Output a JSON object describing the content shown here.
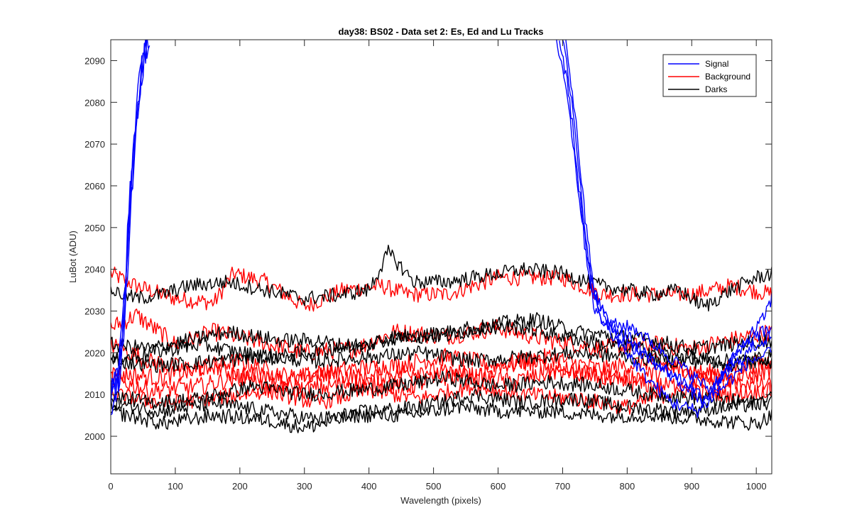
{
  "chart_data": {
    "type": "line",
    "title": "day38: BS02 - Data set 2: Es, Ed and Lu Tracks",
    "xlabel": "Wavelength (pixels)",
    "ylabel": "LuBot (ADU)",
    "xlim": [
      0,
      1024
    ],
    "ylim": [
      1991,
      2095
    ],
    "xticks": [
      0,
      100,
      200,
      300,
      400,
      500,
      600,
      700,
      800,
      900,
      1000
    ],
    "yticks": [
      2000,
      2010,
      2020,
      2030,
      2040,
      2050,
      2060,
      2070,
      2080,
      2090
    ],
    "grid": false,
    "legend": {
      "location": "top-right",
      "entries": [
        "Signal",
        "Background",
        "Darks"
      ]
    },
    "colors": {
      "Signal": "#0000ff",
      "Background": "#ff0000",
      "Darks": "#000000"
    },
    "series": [
      {
        "name": "Background",
        "noise": 2.0,
        "points": [
          [
            0,
            2039
          ],
          [
            40,
            2036
          ],
          [
            100,
            2033
          ],
          [
            160,
            2032
          ],
          [
            190,
            2039
          ],
          [
            240,
            2037
          ],
          [
            300,
            2031
          ],
          [
            360,
            2035
          ],
          [
            420,
            2036
          ],
          [
            460,
            2034
          ],
          [
            520,
            2034
          ],
          [
            600,
            2038
          ],
          [
            700,
            2038
          ],
          [
            760,
            2034
          ],
          [
            840,
            2034
          ],
          [
            900,
            2034
          ],
          [
            960,
            2036
          ],
          [
            1024,
            2034
          ]
        ]
      },
      {
        "name": "Background",
        "noise": 2.2,
        "points": [
          [
            0,
            2026
          ],
          [
            40,
            2029
          ],
          [
            100,
            2022
          ],
          [
            160,
            2025
          ],
          [
            220,
            2023
          ],
          [
            300,
            2020
          ],
          [
            380,
            2021
          ],
          [
            440,
            2025
          ],
          [
            520,
            2024
          ],
          [
            600,
            2026
          ],
          [
            680,
            2023
          ],
          [
            760,
            2021
          ],
          [
            840,
            2022
          ],
          [
            900,
            2021
          ],
          [
            960,
            2023
          ],
          [
            1024,
            2025
          ]
        ]
      },
      {
        "name": "Background",
        "noise": 2.2,
        "points": [
          [
            0,
            2022
          ],
          [
            60,
            2018
          ],
          [
            120,
            2016
          ],
          [
            200,
            2018
          ],
          [
            280,
            2014
          ],
          [
            360,
            2016
          ],
          [
            440,
            2017
          ],
          [
            520,
            2019
          ],
          [
            600,
            2017
          ],
          [
            680,
            2019
          ],
          [
            760,
            2016
          ],
          [
            840,
            2018
          ],
          [
            920,
            2015
          ],
          [
            1024,
            2018
          ]
        ]
      },
      {
        "name": "Background",
        "noise": 2.2,
        "points": [
          [
            0,
            2015
          ],
          [
            80,
            2014
          ],
          [
            160,
            2017
          ],
          [
            240,
            2012
          ],
          [
            320,
            2015
          ],
          [
            400,
            2014
          ],
          [
            480,
            2016
          ],
          [
            560,
            2014
          ],
          [
            640,
            2018
          ],
          [
            720,
            2015
          ],
          [
            800,
            2014
          ],
          [
            880,
            2016
          ],
          [
            960,
            2013
          ],
          [
            1024,
            2016
          ]
        ]
      },
      {
        "name": "Background",
        "noise": 2.2,
        "points": [
          [
            0,
            2014
          ],
          [
            60,
            2011
          ],
          [
            140,
            2012
          ],
          [
            220,
            2015
          ],
          [
            300,
            2011
          ],
          [
            380,
            2013
          ],
          [
            460,
            2012
          ],
          [
            540,
            2015
          ],
          [
            620,
            2013
          ],
          [
            700,
            2016
          ],
          [
            780,
            2013
          ],
          [
            860,
            2012
          ],
          [
            940,
            2014
          ],
          [
            1024,
            2012
          ]
        ]
      },
      {
        "name": "Background",
        "noise": 2.0,
        "points": [
          [
            0,
            2010
          ],
          [
            80,
            2008
          ],
          [
            160,
            2009
          ],
          [
            240,
            2011
          ],
          [
            320,
            2008
          ],
          [
            400,
            2011
          ],
          [
            480,
            2009
          ],
          [
            560,
            2012
          ],
          [
            640,
            2010
          ],
          [
            720,
            2009
          ],
          [
            800,
            2007
          ],
          [
            880,
            2011
          ],
          [
            960,
            2010
          ],
          [
            1024,
            2011
          ]
        ]
      },
      {
        "name": "Darks",
        "noise": 1.8,
        "points": [
          [
            0,
            2035
          ],
          [
            40,
            2033
          ],
          [
            80,
            2034
          ],
          [
            120,
            2036
          ],
          [
            180,
            2037
          ],
          [
            240,
            2035
          ],
          [
            300,
            2033
          ],
          [
            360,
            2034
          ],
          [
            400,
            2035
          ],
          [
            430,
            2044
          ],
          [
            470,
            2037
          ],
          [
            520,
            2037
          ],
          [
            600,
            2039
          ],
          [
            640,
            2040
          ],
          [
            700,
            2039
          ],
          [
            760,
            2036
          ],
          [
            840,
            2034
          ],
          [
            880,
            2035
          ],
          [
            920,
            2031
          ],
          [
            960,
            2035
          ],
          [
            1000,
            2038
          ],
          [
            1024,
            2039
          ]
        ]
      },
      {
        "name": "Darks",
        "noise": 1.8,
        "points": [
          [
            0,
            2022
          ],
          [
            60,
            2021
          ],
          [
            120,
            2023
          ],
          [
            180,
            2025
          ],
          [
            260,
            2023
          ],
          [
            320,
            2023
          ],
          [
            380,
            2021
          ],
          [
            440,
            2024
          ],
          [
            520,
            2024
          ],
          [
            600,
            2027
          ],
          [
            660,
            2028
          ],
          [
            720,
            2025
          ],
          [
            780,
            2024
          ],
          [
            840,
            2023
          ],
          [
            900,
            2021
          ],
          [
            960,
            2022
          ],
          [
            1024,
            2023
          ]
        ]
      },
      {
        "name": "Darks",
        "noise": 1.8,
        "points": [
          [
            0,
            2018
          ],
          [
            60,
            2020
          ],
          [
            140,
            2022
          ],
          [
            200,
            2020
          ],
          [
            260,
            2019
          ],
          [
            340,
            2021
          ],
          [
            420,
            2023
          ],
          [
            480,
            2024
          ],
          [
            560,
            2026
          ],
          [
            640,
            2026
          ],
          [
            700,
            2024
          ],
          [
            760,
            2022
          ],
          [
            820,
            2021
          ],
          [
            900,
            2019
          ],
          [
            960,
            2017
          ],
          [
            1024,
            2018
          ]
        ]
      },
      {
        "name": "Darks",
        "noise": 1.8,
        "points": [
          [
            0,
            2018
          ],
          [
            80,
            2017
          ],
          [
            160,
            2018
          ],
          [
            240,
            2019
          ],
          [
            320,
            2018
          ],
          [
            400,
            2019
          ],
          [
            480,
            2020
          ],
          [
            560,
            2018
          ],
          [
            640,
            2019
          ],
          [
            720,
            2020
          ],
          [
            800,
            2019
          ],
          [
            880,
            2018
          ],
          [
            960,
            2018
          ],
          [
            1024,
            2019
          ]
        ]
      },
      {
        "name": "Darks",
        "noise": 1.8,
        "points": [
          [
            0,
            2010
          ],
          [
            60,
            2008
          ],
          [
            140,
            2009
          ],
          [
            220,
            2012
          ],
          [
            300,
            2010
          ],
          [
            380,
            2011
          ],
          [
            440,
            2012
          ],
          [
            520,
            2014
          ],
          [
            600,
            2012
          ],
          [
            680,
            2013
          ],
          [
            760,
            2012
          ],
          [
            840,
            2010
          ],
          [
            920,
            2009
          ],
          [
            1000,
            2008
          ],
          [
            1024,
            2010
          ]
        ]
      },
      {
        "name": "Darks",
        "noise": 1.8,
        "points": [
          [
            0,
            2008
          ],
          [
            80,
            2006
          ],
          [
            160,
            2008
          ],
          [
            240,
            2006
          ],
          [
            320,
            2004
          ],
          [
            400,
            2006
          ],
          [
            480,
            2007
          ],
          [
            560,
            2010
          ],
          [
            640,
            2008
          ],
          [
            720,
            2009
          ],
          [
            800,
            2007
          ],
          [
            880,
            2006
          ],
          [
            960,
            2007
          ],
          [
            1024,
            2008
          ]
        ]
      },
      {
        "name": "Darks",
        "noise": 1.8,
        "points": [
          [
            0,
            2006
          ],
          [
            80,
            2003
          ],
          [
            160,
            2005
          ],
          [
            240,
            2004
          ],
          [
            300,
            2002
          ],
          [
            380,
            2005
          ],
          [
            460,
            2005
          ],
          [
            540,
            2007
          ],
          [
            600,
            2006
          ],
          [
            680,
            2006
          ],
          [
            760,
            2005
          ],
          [
            840,
            2005
          ],
          [
            920,
            2004
          ],
          [
            1000,
            2003
          ],
          [
            1024,
            2005
          ]
        ]
      },
      {
        "name": "Signal",
        "noise": 3.5,
        "points": [
          [
            0,
            2006
          ],
          [
            10,
            2012
          ],
          [
            20,
            2032
          ],
          [
            30,
            2058
          ],
          [
            40,
            2080
          ],
          [
            50,
            2095
          ]
        ]
      },
      {
        "name": "Signal",
        "noise": 3.5,
        "points": [
          [
            0,
            2006
          ],
          [
            15,
            2016
          ],
          [
            25,
            2040
          ],
          [
            35,
            2064
          ],
          [
            45,
            2084
          ],
          [
            55,
            2095
          ]
        ]
      },
      {
        "name": "Signal",
        "noise": 3.5,
        "points": [
          [
            0,
            2011
          ],
          [
            12,
            2014
          ],
          [
            22,
            2036
          ],
          [
            32,
            2060
          ],
          [
            42,
            2078
          ],
          [
            52,
            2092
          ],
          [
            60,
            2095
          ]
        ]
      },
      {
        "name": "Signal",
        "noise": 3.5,
        "points": [
          [
            0,
            2013
          ],
          [
            18,
            2020
          ],
          [
            28,
            2046
          ],
          [
            38,
            2070
          ],
          [
            48,
            2088
          ],
          [
            58,
            2095
          ]
        ]
      },
      {
        "name": "Signal",
        "noise": 1.6,
        "points": [
          [
            690,
            2095
          ],
          [
            705,
            2085
          ],
          [
            720,
            2065
          ],
          [
            735,
            2045
          ],
          [
            750,
            2030
          ],
          [
            780,
            2024
          ],
          [
            820,
            2020
          ],
          [
            860,
            2016
          ],
          [
            900,
            2012
          ],
          [
            920,
            2009
          ],
          [
            960,
            2018
          ],
          [
            1000,
            2024
          ],
          [
            1024,
            2026
          ]
        ]
      },
      {
        "name": "Signal",
        "noise": 1.6,
        "points": [
          [
            695,
            2095
          ],
          [
            710,
            2082
          ],
          [
            725,
            2060
          ],
          [
            740,
            2040
          ],
          [
            760,
            2028
          ],
          [
            800,
            2024
          ],
          [
            840,
            2018
          ],
          [
            880,
            2013
          ],
          [
            920,
            2008
          ],
          [
            960,
            2016
          ],
          [
            1000,
            2022
          ],
          [
            1024,
            2024
          ]
        ]
      },
      {
        "name": "Signal",
        "noise": 1.6,
        "points": [
          [
            700,
            2095
          ],
          [
            715,
            2080
          ],
          [
            730,
            2056
          ],
          [
            745,
            2036
          ],
          [
            770,
            2027
          ],
          [
            810,
            2026
          ],
          [
            850,
            2021
          ],
          [
            890,
            2016
          ],
          [
            930,
            2011
          ],
          [
            970,
            2020
          ],
          [
            1010,
            2028
          ],
          [
            1024,
            2033
          ]
        ]
      },
      {
        "name": "Signal",
        "noise": 1.6,
        "points": [
          [
            705,
            2095
          ],
          [
            720,
            2076
          ],
          [
            735,
            2052
          ],
          [
            750,
            2034
          ],
          [
            790,
            2022
          ],
          [
            830,
            2014
          ],
          [
            870,
            2008
          ],
          [
            910,
            2006
          ],
          [
            950,
            2012
          ],
          [
            990,
            2018
          ],
          [
            1024,
            2020
          ]
        ]
      }
    ]
  }
}
